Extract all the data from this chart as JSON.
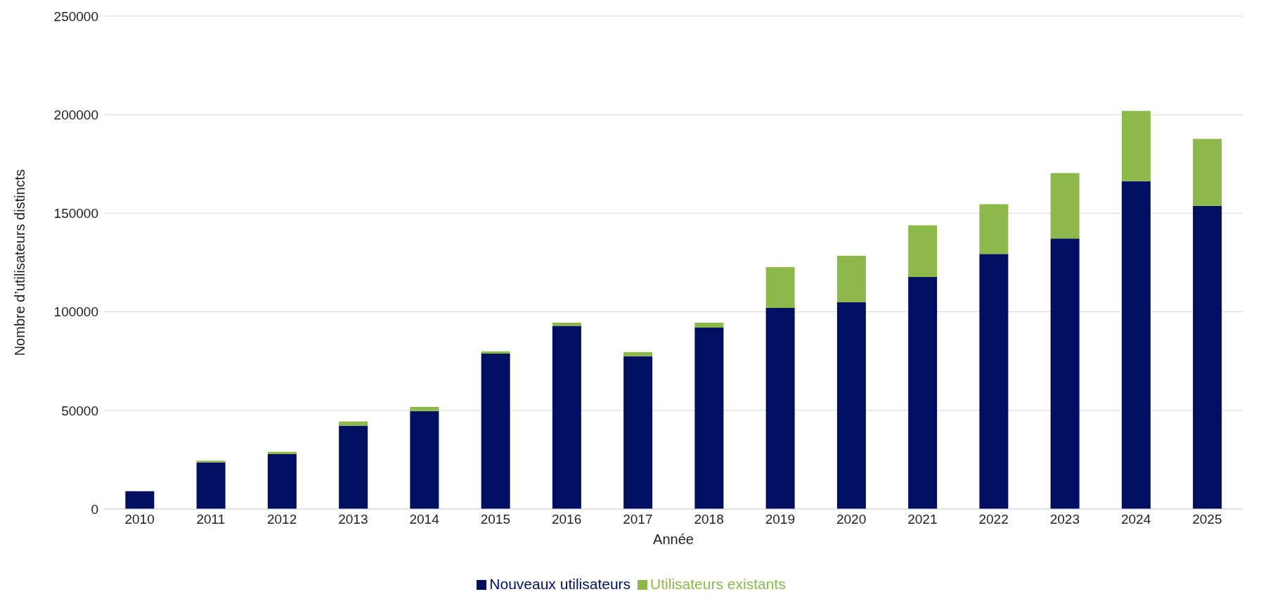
{
  "chart_data": {
    "type": "bar",
    "stacked": true,
    "xlabel": "Année",
    "ylabel": "Nombre d’utilisateurs distincts",
    "categories": [
      "2010",
      "2011",
      "2012",
      "2013",
      "2014",
      "2015",
      "2016",
      "2017",
      "2018",
      "2019",
      "2020",
      "2021",
      "2022",
      "2023",
      "2024",
      "2025"
    ],
    "series": [
      {
        "name": "Nouveaux utilisateurs",
        "color": "#000f5f",
        "values": [
          9000,
          23600,
          27800,
          42300,
          49700,
          78800,
          92900,
          77500,
          92000,
          102000,
          104900,
          117700,
          129400,
          137200,
          166300,
          153800
        ]
      },
      {
        "name": "Utilisateurs existants",
        "color": "#8db84a",
        "values": [
          0,
          900,
          1200,
          2100,
          2100,
          1200,
          1600,
          2100,
          2500,
          20700,
          23600,
          26200,
          25200,
          33200,
          35600,
          34000
        ]
      }
    ],
    "ylim": [
      0,
      250000
    ],
    "yticks": [
      0,
      50000,
      100000,
      150000,
      200000,
      250000
    ],
    "grid": "y",
    "legend": "bottom"
  }
}
